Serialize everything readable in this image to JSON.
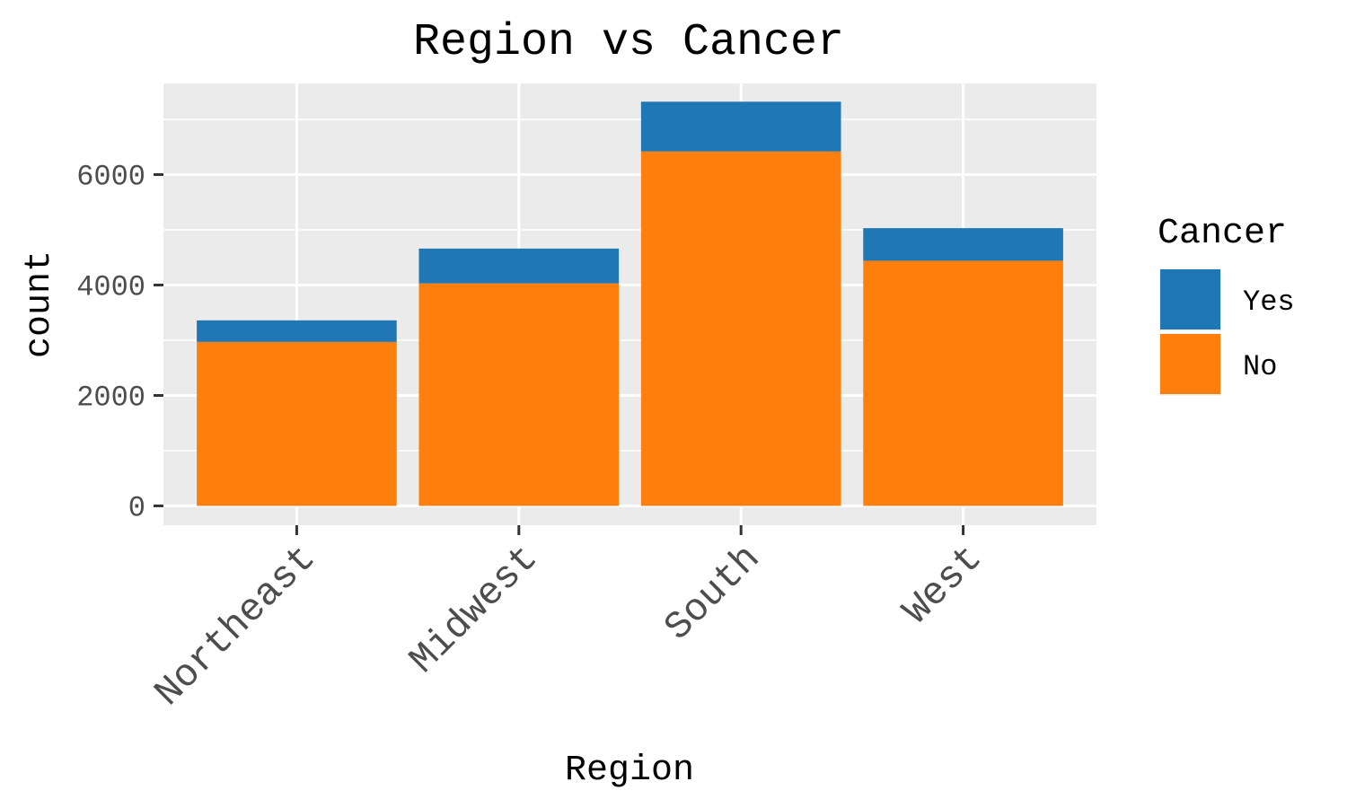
{
  "chart_data": {
    "type": "bar",
    "stacked": true,
    "title": "Region vs Cancer",
    "xlabel": "Region",
    "ylabel": "count",
    "categories": [
      "Northeast",
      "Midwest",
      "South",
      "West"
    ],
    "series": [
      {
        "name": "No",
        "values": [
          2970,
          4030,
          6420,
          4440
        ],
        "color": "#FF7F0E"
      },
      {
        "name": "Yes",
        "values": [
          390,
          630,
          900,
          590
        ],
        "color": "#1F77B4"
      }
    ],
    "ylim": [
      -350,
      7650
    ],
    "yticks": [
      0,
      2000,
      4000,
      6000
    ],
    "ytick_labels": [
      "0",
      "2000",
      "4000",
      "6000"
    ],
    "grid": true,
    "legend": {
      "title": "Cancer",
      "position": "right",
      "entries": [
        {
          "label": "Yes",
          "color": "#1F77B4"
        },
        {
          "label": "No",
          "color": "#FF7F0E"
        }
      ]
    }
  }
}
